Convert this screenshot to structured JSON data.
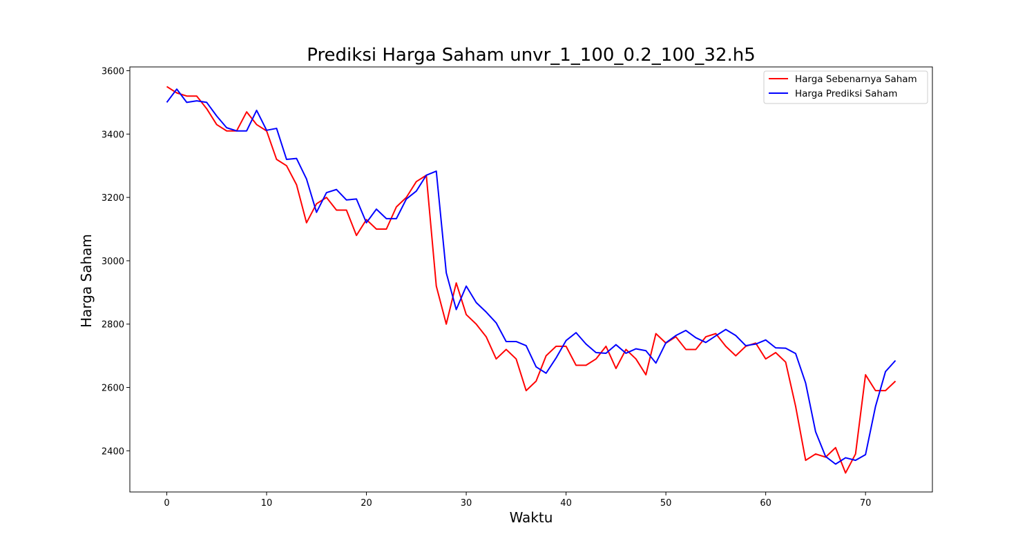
{
  "chart_data": {
    "type": "line",
    "title": "Prediksi Harga Saham unvr_1_100_0.2_100_32.h5",
    "xlabel": "Waktu",
    "ylabel": "Harga Saham",
    "xlim": [
      -3.7,
      76.7
    ],
    "ylim": [
      2270,
      3612
    ],
    "xticks": [
      0,
      10,
      20,
      30,
      40,
      50,
      60,
      70
    ],
    "yticks": [
      2400,
      2600,
      2800,
      3000,
      3200,
      3400,
      3600
    ],
    "grid": false,
    "legend": "top-right",
    "series": [
      {
        "name": "Harga Sebenarnya Saham",
        "color": "#ff0000",
        "values": [
          3550,
          3530,
          3520,
          3520,
          3480,
          3430,
          3410,
          3410,
          3470,
          3430,
          3410,
          3320,
          3300,
          3240,
          3120,
          3180,
          3200,
          3160,
          3160,
          3080,
          3130,
          3100,
          3100,
          3170,
          3200,
          3250,
          3270,
          2920,
          2800,
          2930,
          2830,
          2800,
          2760,
          2690,
          2720,
          2690,
          2590,
          2620,
          2700,
          2730,
          2730,
          2670,
          2670,
          2690,
          2730,
          2660,
          2720,
          2690,
          2640,
          2770,
          2740,
          2760,
          2720,
          2720,
          2760,
          2770,
          2730,
          2700,
          2730,
          2740,
          2690,
          2710,
          2680,
          2540,
          2370,
          2390,
          2380,
          2410,
          2330,
          2390,
          2640,
          2590,
          2590,
          2620
        ]
      },
      {
        "name": "Harga Prediksi Saham",
        "color": "#0000ff",
        "values": [
          3500,
          3542,
          3500,
          3505,
          3500,
          3457,
          3420,
          3410,
          3410,
          3475,
          3412,
          3418,
          3320,
          3323,
          3258,
          3153,
          3215,
          3225,
          3192,
          3195,
          3120,
          3163,
          3133,
          3133,
          3195,
          3220,
          3270,
          3283,
          2962,
          2846,
          2920,
          2868,
          2838,
          2804,
          2745,
          2745,
          2732,
          2665,
          2645,
          2693,
          2748,
          2773,
          2737,
          2710,
          2708,
          2735,
          2708,
          2722,
          2716,
          2677,
          2741,
          2764,
          2780,
          2757,
          2742,
          2763,
          2783,
          2764,
          2732,
          2737,
          2750,
          2725,
          2724,
          2707,
          2614,
          2460,
          2382,
          2358,
          2378,
          2370,
          2388,
          2540,
          2650,
          2685
        ]
      }
    ]
  }
}
